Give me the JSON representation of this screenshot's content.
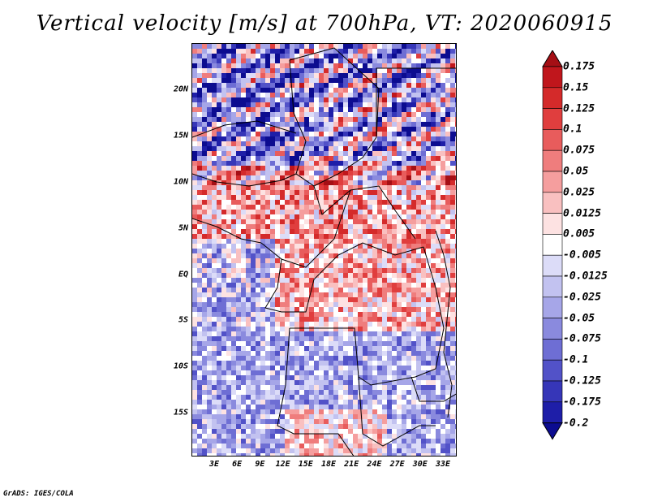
{
  "title": "Vertical velocity [m/s] at 700hPa, VT: 2020060915",
  "credit": "GrADS: IGES/COLA",
  "latitude_ticks": [
    "20N",
    "15N",
    "10N",
    "5N",
    "EQ",
    "5S",
    "10S",
    "15S"
  ],
  "longitude_ticks": [
    "3E",
    "6E",
    "9E",
    "12E",
    "15E",
    "18E",
    "21E",
    "24E",
    "27E",
    "30E",
    "33E"
  ],
  "colorbar": {
    "labels": [
      "0.175",
      "0.15",
      "0.125",
      "0.1",
      "0.075",
      "0.05",
      "0.025",
      "0.0125",
      "0.005",
      "-0.005",
      "-0.0125",
      "-0.025",
      "-0.05",
      "-0.075",
      "-0.1",
      "-0.125",
      "-0.175",
      "-0.2"
    ],
    "colors": [
      "#a50f15",
      "#c0161c",
      "#d42a2a",
      "#e03e3e",
      "#e85c5c",
      "#ef7d7d",
      "#f59e9e",
      "#f9c0c0",
      "#fde2e2",
      "#ffffff",
      "#dcdcf8",
      "#c2c2f0",
      "#a6a6e8",
      "#8a8ade",
      "#6e6ed4",
      "#5252c8",
      "#3636b8",
      "#1e1ea8",
      "#0c0c90"
    ]
  }
}
